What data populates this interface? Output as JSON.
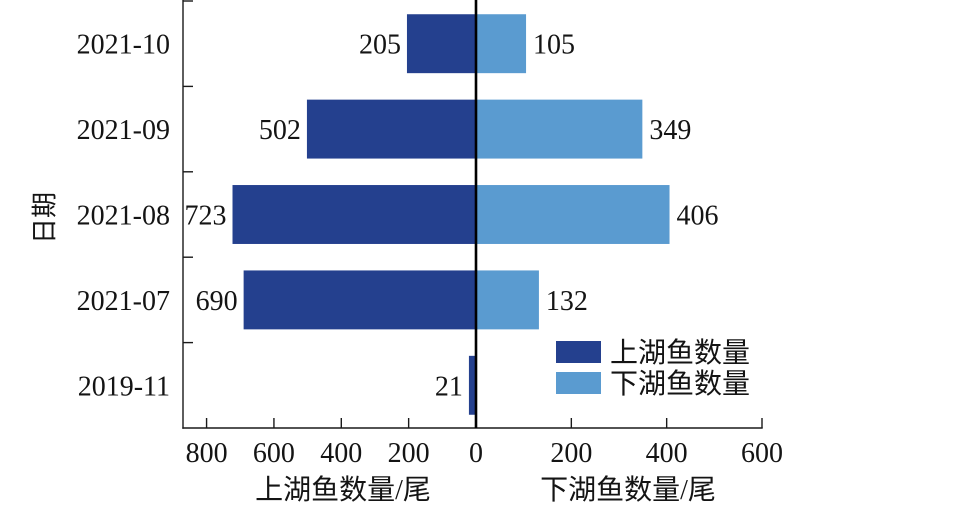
{
  "chart_data": {
    "type": "bar",
    "orientation": "horizontal",
    "categories": [
      "2021-10",
      "2021-09",
      "2021-08",
      "2021-07",
      "2019-11"
    ],
    "series": [
      {
        "name": "上湖鱼数量",
        "color": "#24408E",
        "values": [
          205,
          502,
          723,
          690,
          21
        ]
      },
      {
        "name": "下湖鱼数量",
        "color": "#5A9BD0",
        "values": [
          105,
          349,
          406,
          132,
          null
        ]
      }
    ],
    "ylabel": "日期",
    "xlabel_left": "上湖鱼数量/尾",
    "xlabel_right": "下湖鱼数量/尾",
    "xlim": {
      "left": [
        0,
        870
      ],
      "right": [
        0,
        600
      ]
    },
    "xticks": {
      "left": [
        800,
        600,
        400,
        200,
        0
      ],
      "right": [
        200,
        400,
        600
      ]
    },
    "legend_position": "lower-right",
    "grid": false
  }
}
